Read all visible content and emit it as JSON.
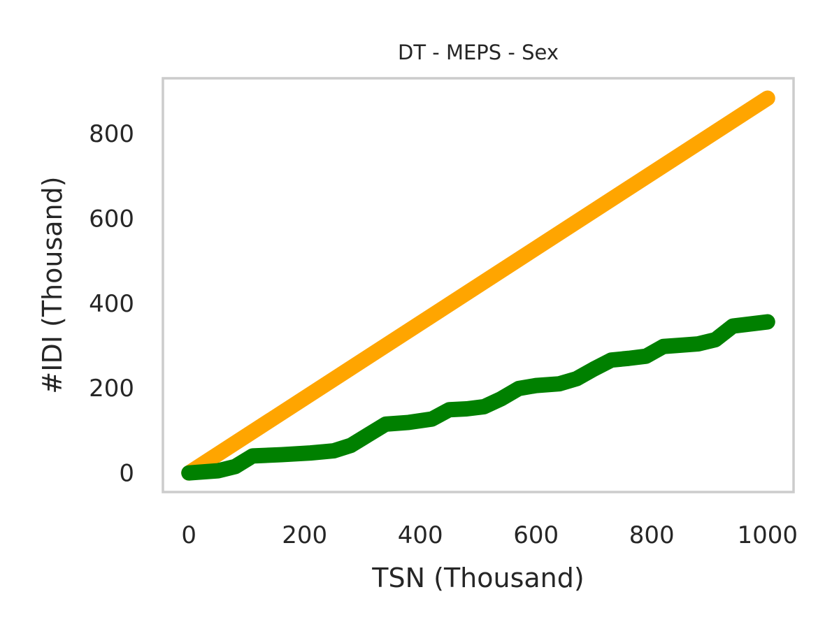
{
  "chart_data": {
    "type": "line",
    "title": "DT - MEPS - Sex",
    "xlabel": "TSN (Thousand)",
    "ylabel": "#IDI (Thousand)",
    "xlim": [
      -45,
      1045
    ],
    "ylim": [
      -45,
      930
    ],
    "xticks": [
      0,
      200,
      400,
      600,
      800,
      1000
    ],
    "yticks": [
      0,
      200,
      400,
      600,
      800
    ],
    "grid": false,
    "legend": "none",
    "series": [
      {
        "color": "#ffa500",
        "x": [
          0,
          1000
        ],
        "y": [
          0,
          883
        ]
      },
      {
        "color": "#008000",
        "x": [
          0,
          50,
          80,
          110,
          160,
          210,
          250,
          280,
          310,
          340,
          380,
          420,
          450,
          480,
          510,
          540,
          570,
          600,
          640,
          670,
          700,
          730,
          760,
          790,
          820,
          850,
          880,
          910,
          940,
          970,
          1000
        ],
        "y": [
          0,
          5,
          15,
          40,
          43,
          47,
          52,
          65,
          90,
          115,
          119,
          127,
          149,
          151,
          156,
          175,
          199,
          206,
          210,
          222,
          245,
          266,
          270,
          275,
          298,
          301,
          304,
          314,
          346,
          351,
          356
        ]
      }
    ]
  }
}
